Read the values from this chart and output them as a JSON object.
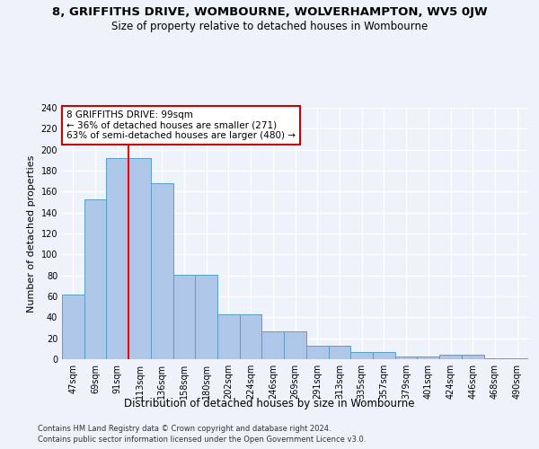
{
  "title_line1": "8, GRIFFITHS DRIVE, WOMBOURNE, WOLVERHAMPTON, WV5 0JW",
  "title_line2": "Size of property relative to detached houses in Wombourne",
  "xlabel": "Distribution of detached houses by size in Wombourne",
  "ylabel": "Number of detached properties",
  "footer_line1": "Contains HM Land Registry data © Crown copyright and database right 2024.",
  "footer_line2": "Contains public sector information licensed under the Open Government Licence v3.0.",
  "categories": [
    "47sqm",
    "69sqm",
    "91sqm",
    "113sqm",
    "136sqm",
    "158sqm",
    "180sqm",
    "202sqm",
    "224sqm",
    "246sqm",
    "269sqm",
    "291sqm",
    "313sqm",
    "335sqm",
    "357sqm",
    "379sqm",
    "401sqm",
    "424sqm",
    "446sqm",
    "468sqm",
    "490sqm"
  ],
  "bar_heights": [
    62,
    153,
    192,
    192,
    168,
    81,
    81,
    43,
    43,
    27,
    27,
    13,
    13,
    7,
    7,
    3,
    3,
    4,
    4,
    1,
    1
  ],
  "bar_color": "#aec6e8",
  "bar_edge_color": "#5a9fc8",
  "red_line_x": 2.5,
  "annotation_text_line1": "8 GRIFFITHS DRIVE: 99sqm",
  "annotation_text_line2": "← 36% of detached houses are smaller (271)",
  "annotation_text_line3": "63% of semi-detached houses are larger (480) →",
  "annotation_box_facecolor": "#ffffff",
  "annotation_box_edgecolor": "#cc0000",
  "ylim": [
    0,
    240
  ],
  "yticks": [
    0,
    20,
    40,
    60,
    80,
    100,
    120,
    140,
    160,
    180,
    200,
    220,
    240
  ],
  "background_color": "#eef2fb",
  "grid_color": "#ffffff",
  "title_fontsize": 9.5,
  "subtitle_fontsize": 8.5,
  "ylabel_fontsize": 8,
  "xlabel_fontsize": 8.5,
  "tick_fontsize": 7,
  "footer_fontsize": 6,
  "ann_fontsize": 7.5
}
